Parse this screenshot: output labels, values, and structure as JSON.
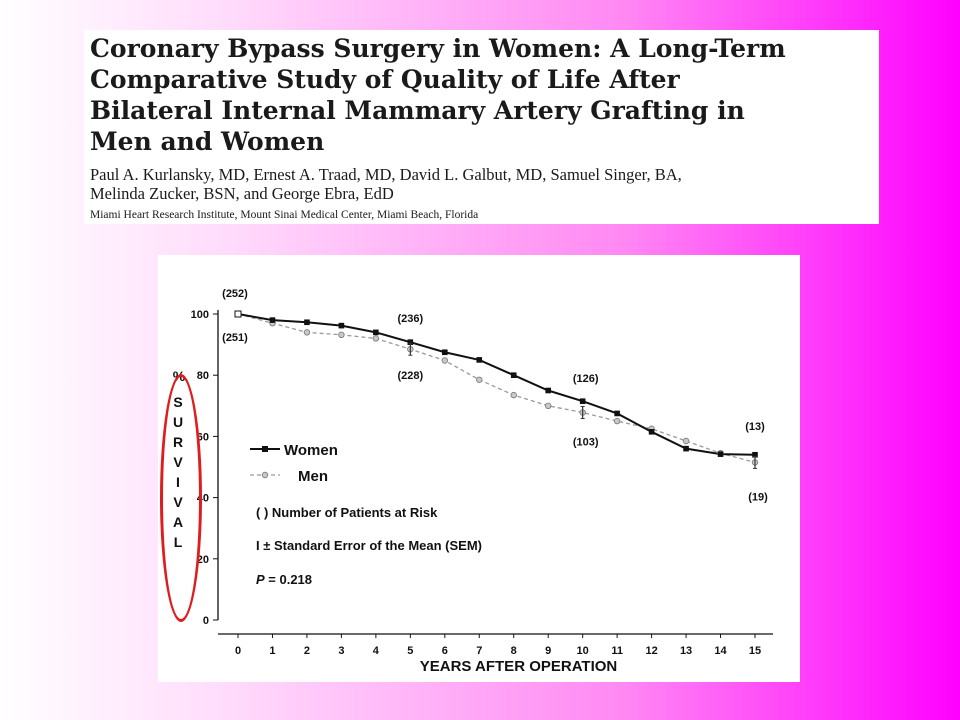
{
  "paper": {
    "title": "Coronary Bypass Surgery in Women: A Long-Term Comparative Study of Quality of Life After Bilateral Internal Mammary Artery Grafting in Men and Women",
    "title_lines": [
      "Coronary Bypass Surgery in Women: A Long-Term",
      "Comparative Study of Quality of Life After",
      "Bilateral Internal Mammary Artery Grafting in",
      "Men and Women"
    ],
    "authors_lines": [
      "Paul A. Kurlansky, MD, Ernest A. Traad, MD, David L. Galbut, MD, Samuel Singer, BA,",
      "Melinda Zucker, BSN, and George Ebra, EdD"
    ],
    "affiliation": "Miami Heart Research Institute, Mount Sinai Medical Center, Miami Beach, Florida"
  },
  "chart_data": {
    "type": "line",
    "title": "",
    "xlabel": "YEARS AFTER OPERATION",
    "ylabel": "% SURVIVAL",
    "ylabel_letters": [
      "%",
      "S",
      "U",
      "R",
      "V",
      "I",
      "V",
      "A",
      "L"
    ],
    "xlim": [
      0,
      15
    ],
    "ylim": [
      0,
      100
    ],
    "x": [
      0,
      1,
      2,
      3,
      4,
      5,
      6,
      7,
      8,
      9,
      10,
      11,
      12,
      13,
      14,
      15
    ],
    "x_tick_labels": [
      "0",
      "1",
      "2",
      "3",
      "4",
      "5",
      "6",
      "7",
      "8",
      "9",
      "10",
      "11",
      "12",
      "13",
      "14",
      "15"
    ],
    "y_ticks": [
      0,
      20,
      40,
      60,
      80,
      100
    ],
    "y_tick_labels": [
      "0",
      "20",
      "40",
      "60",
      "80",
      "100"
    ],
    "grid": false,
    "legend_position": "left",
    "series": [
      {
        "name": "Women",
        "style": "solid-black-square-markers",
        "values": [
          100,
          98,
          97.3,
          96.2,
          94,
          90.8,
          87.5,
          85,
          80,
          75,
          71.5,
          67.5,
          61.5,
          56,
          54.2,
          54
        ]
      },
      {
        "name": "Men",
        "style": "dashed-gray-circle-markers",
        "values": [
          100,
          97,
          94,
          93.2,
          92,
          88.5,
          84.8,
          78.5,
          73.5,
          70,
          67.8,
          65,
          62.5,
          58.5,
          54.5,
          51.5
        ]
      }
    ],
    "at_risk_annotations": [
      {
        "text": "(252)",
        "x": 0,
        "series": "Women"
      },
      {
        "text": "(251)",
        "x": 0,
        "series": "Men"
      },
      {
        "text": "(236)",
        "x": 5,
        "series": "Women"
      },
      {
        "text": "(228)",
        "x": 5,
        "series": "Men"
      },
      {
        "text": "(126)",
        "x": 10,
        "series": "Women"
      },
      {
        "text": "(103)",
        "x": 10,
        "series": "Men"
      },
      {
        "text": "(13)",
        "x": 15,
        "series": "Women"
      },
      {
        "text": "(19)",
        "x": 15,
        "series": "Men"
      }
    ],
    "legend_notes": [
      "(  ) Number of Patients at Risk",
      "I ± Standard Error of the Mean (SEM)"
    ],
    "p_value_label": "P",
    "p_value_text": " = 0.218"
  },
  "colors": {
    "highlight_oval": "#e01d1d",
    "women_series": "#111111",
    "men_series": "#9a9a9a"
  }
}
